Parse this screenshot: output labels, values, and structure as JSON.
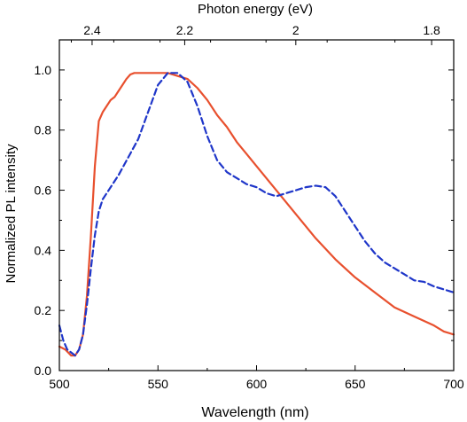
{
  "chart_data": {
    "type": "line",
    "xlabel": "Wavelength (nm)",
    "ylabel": "Normalized PL intensity",
    "top_axis_label": "Photon energy (eV)",
    "xlim": [
      500,
      700
    ],
    "ylim": [
      0.0,
      1.1
    ],
    "x_ticks": [
      500,
      550,
      600,
      650,
      700
    ],
    "x_tick_labels": [
      "500",
      "550",
      "600",
      "650",
      "700"
    ],
    "y_ticks": [
      0.0,
      0.2,
      0.4,
      0.6,
      0.8,
      1.0
    ],
    "y_tick_labels": [
      "0.0",
      "0.2",
      "0.4",
      "0.6",
      "0.8",
      "1.0"
    ],
    "top_ticks_ev": [
      2.4,
      2.2,
      2.0,
      1.8
    ],
    "top_tick_labels": [
      "2.4",
      "2.2",
      "2",
      "1.8"
    ],
    "grid": false,
    "legend": "none",
    "series": [
      {
        "style": "solid",
        "color": "#e8502e",
        "x": [
          500,
          503,
          506,
          508,
          510,
          512,
          514,
          516,
          518,
          520,
          522,
          524,
          526,
          528,
          530,
          532,
          534,
          536,
          538,
          540,
          545,
          550,
          555,
          560,
          565,
          570,
          575,
          580,
          585,
          590,
          595,
          600,
          610,
          620,
          630,
          640,
          650,
          660,
          670,
          680,
          690,
          695,
          700
        ],
        "y": [
          0.08,
          0.07,
          0.05,
          0.05,
          0.07,
          0.12,
          0.25,
          0.45,
          0.68,
          0.83,
          0.86,
          0.88,
          0.9,
          0.91,
          0.93,
          0.95,
          0.97,
          0.985,
          0.99,
          0.99,
          0.99,
          0.99,
          0.99,
          0.98,
          0.97,
          0.94,
          0.9,
          0.85,
          0.81,
          0.76,
          0.72,
          0.68,
          0.6,
          0.52,
          0.44,
          0.37,
          0.31,
          0.26,
          0.21,
          0.18,
          0.15,
          0.13,
          0.12
        ]
      },
      {
        "style": "dashed",
        "color": "#1f36c9",
        "x": [
          500,
          502,
          504,
          506,
          508,
          510,
          512,
          514,
          516,
          518,
          520,
          522,
          525,
          530,
          535,
          540,
          545,
          550,
          555,
          560,
          565,
          570,
          575,
          580,
          585,
          590,
          595,
          600,
          605,
          610,
          615,
          620,
          625,
          630,
          635,
          640,
          645,
          650,
          655,
          660,
          665,
          670,
          675,
          680,
          685,
          690,
          695,
          700
        ],
        "y": [
          0.15,
          0.1,
          0.07,
          0.06,
          0.05,
          0.07,
          0.12,
          0.22,
          0.34,
          0.45,
          0.53,
          0.57,
          0.6,
          0.65,
          0.71,
          0.77,
          0.86,
          0.95,
          0.99,
          0.99,
          0.96,
          0.88,
          0.78,
          0.7,
          0.66,
          0.64,
          0.62,
          0.61,
          0.59,
          0.58,
          0.59,
          0.6,
          0.61,
          0.615,
          0.61,
          0.58,
          0.53,
          0.48,
          0.43,
          0.39,
          0.36,
          0.34,
          0.32,
          0.3,
          0.295,
          0.28,
          0.27,
          0.26
        ]
      }
    ]
  }
}
